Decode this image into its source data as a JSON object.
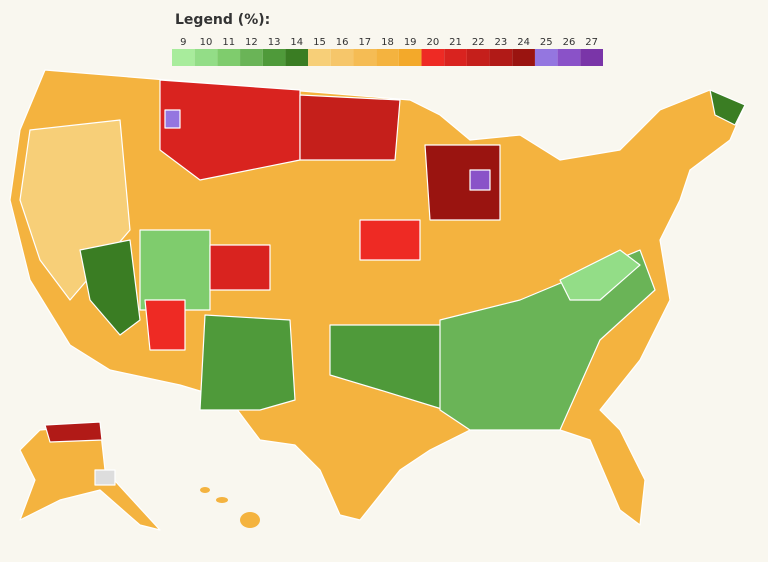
{
  "legend": {
    "title": "Legend (%):",
    "bins": [
      {
        "value": 9,
        "color": "#a8ec9c"
      },
      {
        "value": 10,
        "color": "#93dd87"
      },
      {
        "value": 11,
        "color": "#7fcc6d"
      },
      {
        "value": 12,
        "color": "#6ab457"
      },
      {
        "value": 13,
        "color": "#4f9a3a"
      },
      {
        "value": 14,
        "color": "#3a7d23"
      },
      {
        "value": 15,
        "color": "#f7cf78"
      },
      {
        "value": 16,
        "color": "#f6c66a"
      },
      {
        "value": 17,
        "color": "#f5bc54"
      },
      {
        "value": 18,
        "color": "#f4b33f"
      },
      {
        "value": 19,
        "color": "#f3a92a"
      },
      {
        "value": 20,
        "color": "#ee2a24"
      },
      {
        "value": 21,
        "color": "#d9231f"
      },
      {
        "value": 22,
        "color": "#c51f1b"
      },
      {
        "value": 23,
        "color": "#b11a17"
      },
      {
        "value": 24,
        "color": "#9a1410"
      },
      {
        "value": 25,
        "color": "#9476e0"
      },
      {
        "value": 26,
        "color": "#8a52c8"
      },
      {
        "value": 27,
        "color": "#7a35a8"
      }
    ]
  }
}
